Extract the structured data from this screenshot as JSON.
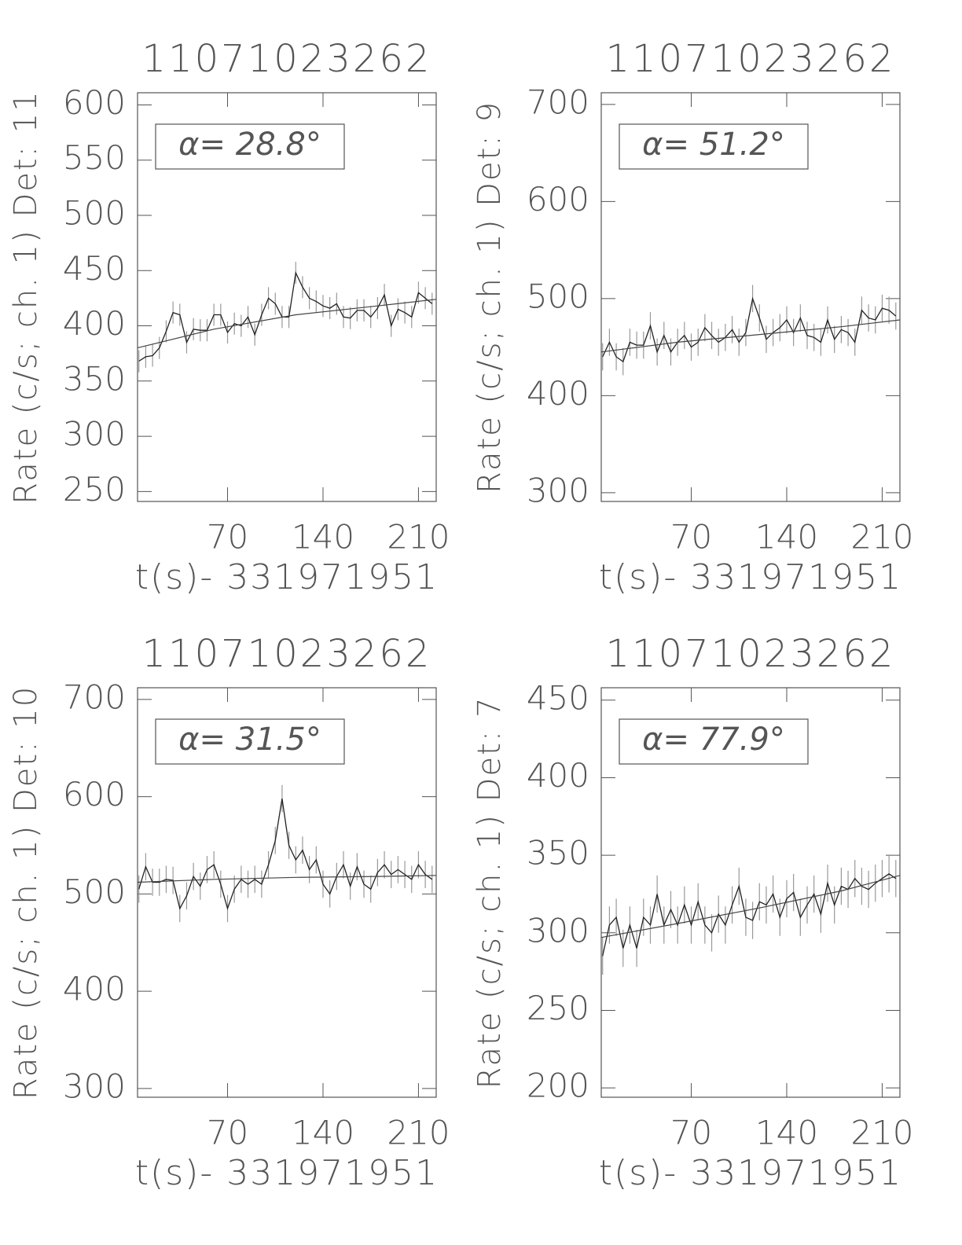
{
  "chart_data": [
    {
      "type": "line",
      "title": "11071023262",
      "xlabel": "t(s)- 331971951",
      "ylabel": "Rate (c/s; ch. 1) Det: 11",
      "annotation": "α= 28.8°",
      "x": [
        5,
        10,
        15,
        20,
        25,
        30,
        35,
        40,
        45,
        50,
        55,
        60,
        65,
        70,
        75,
        80,
        85,
        90,
        95,
        100,
        105,
        110,
        115,
        120,
        125,
        130,
        135,
        140,
        145,
        150,
        155,
        160,
        165,
        170,
        175,
        180,
        185,
        190,
        195,
        200,
        205,
        210,
        215,
        220
      ],
      "values": [
        368,
        372,
        373,
        380,
        395,
        412,
        410,
        385,
        397,
        396,
        396,
        410,
        410,
        394,
        402,
        400,
        408,
        392,
        410,
        425,
        420,
        408,
        408,
        448,
        435,
        425,
        422,
        418,
        416,
        420,
        408,
        407,
        414,
        414,
        408,
        416,
        428,
        400,
        415,
        412,
        408,
        430,
        425,
        420
      ],
      "error": 10,
      "fit_x": [
        4,
        60,
        120,
        180,
        223
      ],
      "fit_values": [
        380,
        397,
        410,
        418,
        424
      ],
      "xlim": [
        4,
        223
      ],
      "ylim": [
        241,
        611
      ],
      "xticks": [
        70,
        140,
        210
      ],
      "yticks": [
        250,
        300,
        350,
        400,
        450,
        500,
        550,
        600
      ]
    },
    {
      "type": "line",
      "title": "11071023262",
      "xlabel": "t(s)- 331971951",
      "ylabel": "Rate (c/s; ch. 1) Det: 9",
      "annotation": "α= 51.2°",
      "x": [
        5,
        10,
        15,
        20,
        25,
        30,
        35,
        40,
        45,
        50,
        55,
        60,
        65,
        70,
        75,
        80,
        85,
        90,
        95,
        100,
        105,
        110,
        115,
        120,
        125,
        130,
        135,
        140,
        145,
        150,
        155,
        160,
        165,
        170,
        175,
        180,
        185,
        190,
        195,
        200,
        205,
        210,
        215,
        220
      ],
      "values": [
        440,
        455,
        440,
        435,
        455,
        452,
        452,
        472,
        445,
        462,
        445,
        455,
        462,
        450,
        455,
        470,
        462,
        455,
        460,
        468,
        455,
        465,
        500,
        480,
        458,
        465,
        470,
        478,
        465,
        480,
        462,
        460,
        455,
        478,
        458,
        468,
        465,
        455,
        488,
        480,
        478,
        490,
        488,
        482
      ],
      "error": 14,
      "fit_x": [
        4,
        60,
        120,
        180,
        223
      ],
      "fit_values": [
        445,
        455,
        463,
        471,
        478
      ],
      "xlim": [
        4,
        223
      ],
      "ylim": [
        291,
        712
      ],
      "xticks": [
        70,
        140,
        210
      ],
      "yticks": [
        300,
        400,
        500,
        600,
        700
      ]
    },
    {
      "type": "line",
      "title": "11071023262",
      "xlabel": "t(s)- 331971951",
      "ylabel": "Rate (c/s; ch. 1) Det: 10",
      "annotation": "α= 31.5°",
      "x": [
        5,
        10,
        15,
        20,
        25,
        30,
        35,
        40,
        45,
        50,
        55,
        60,
        65,
        70,
        75,
        80,
        85,
        90,
        95,
        100,
        105,
        110,
        115,
        120,
        125,
        130,
        135,
        140,
        145,
        150,
        155,
        160,
        165,
        170,
        175,
        180,
        185,
        190,
        195,
        200,
        205,
        210,
        215,
        220
      ],
      "values": [
        505,
        528,
        512,
        512,
        515,
        514,
        485,
        498,
        518,
        508,
        525,
        530,
        510,
        485,
        505,
        515,
        510,
        515,
        510,
        530,
        555,
        598,
        550,
        535,
        545,
        525,
        535,
        510,
        500,
        518,
        530,
        508,
        528,
        510,
        505,
        522,
        530,
        520,
        525,
        520,
        515,
        530,
        520,
        515
      ],
      "error": 14,
      "fit_x": [
        4,
        60,
        120,
        180,
        223
      ],
      "fit_values": [
        512,
        515,
        517,
        518,
        519
      ],
      "xlim": [
        4,
        223
      ],
      "ylim": [
        291,
        712
      ],
      "xticks": [
        70,
        140,
        210
      ],
      "yticks": [
        300,
        400,
        500,
        600,
        700
      ]
    },
    {
      "type": "line",
      "title": "11071023262",
      "xlabel": "t(s)- 331971951",
      "ylabel": "Rate (c/s; ch. 1) Det: 7",
      "annotation": "α= 77.9°",
      "x": [
        5,
        10,
        15,
        20,
        25,
        30,
        35,
        40,
        45,
        50,
        55,
        60,
        65,
        70,
        75,
        80,
        85,
        90,
        95,
        100,
        105,
        110,
        115,
        120,
        125,
        130,
        135,
        140,
        145,
        150,
        155,
        160,
        165,
        170,
        175,
        180,
        185,
        190,
        195,
        200,
        205,
        210,
        215,
        220
      ],
      "values": [
        285,
        305,
        310,
        290,
        305,
        290,
        310,
        305,
        325,
        305,
        315,
        305,
        318,
        305,
        320,
        305,
        300,
        312,
        305,
        318,
        330,
        310,
        308,
        320,
        318,
        325,
        310,
        322,
        326,
        310,
        318,
        325,
        312,
        332,
        318,
        330,
        328,
        335,
        330,
        328,
        332,
        335,
        338,
        335
      ],
      "error": 12,
      "fit_x": [
        4,
        60,
        120,
        180,
        223
      ],
      "fit_values": [
        297,
        306,
        316,
        327,
        337
      ],
      "xlim": [
        4,
        223
      ],
      "ylim": [
        194,
        458
      ],
      "xticks": [
        70,
        140,
        210
      ],
      "yticks": [
        200,
        250,
        300,
        350,
        400,
        450
      ]
    }
  ]
}
